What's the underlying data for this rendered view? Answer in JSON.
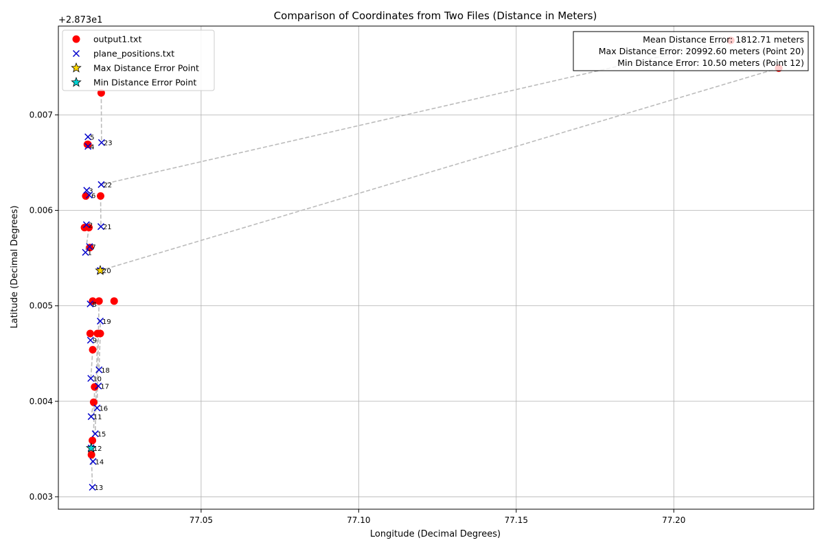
{
  "chart_data": {
    "type": "scatter",
    "title": "Comparison of Coordinates from Two Files (Distance in Meters)",
    "xlabel": "Longitude (Decimal Degrees)",
    "ylabel": "Latitude (Decimal Degrees)",
    "y_offset_label": "+2.873e1",
    "xlim": [
      77.0047,
      77.2444
    ],
    "ylim": [
      0.00287,
      0.00793
    ],
    "xticks": [
      77.05,
      77.1,
      77.15,
      77.2
    ],
    "xtick_labels": [
      "77.05",
      "77.10",
      "77.15",
      "77.20"
    ],
    "yticks": [
      0.003,
      0.004,
      0.005,
      0.006,
      0.007
    ],
    "ytick_labels": [
      "0.003",
      "0.004",
      "0.005",
      "0.006",
      "0.007"
    ],
    "grid": true,
    "legend_placement": "top-left",
    "colors": {
      "output1": "#ff0000",
      "plane": "#0000cc",
      "max_star": "#ffd700",
      "min_star": "#00d4d4",
      "lines": "#bbbbbb"
    },
    "series": [
      {
        "name": "output1.txt",
        "marker": "circle",
        "points": [
          [
            77.0224,
            0.00505
          ],
          [
            77.0134,
            0.00615
          ],
          [
            77.013,
            0.00582
          ],
          [
            77.0144,
            0.00582
          ],
          [
            77.0139,
            0.00669
          ],
          [
            77.0141,
            0.00669
          ],
          [
            77.0147,
            0.00561
          ],
          [
            77.0156,
            0.00505
          ],
          [
            77.0148,
            0.00471
          ],
          [
            77.0156,
            0.00454
          ],
          [
            77.0162,
            0.00415
          ],
          [
            77.0159,
            0.00399
          ],
          [
            77.0155,
            0.00359
          ],
          [
            77.0152,
            0.00344
          ],
          [
            77.0171,
            0.00471
          ],
          [
            77.018,
            0.00471
          ],
          [
            77.0181,
            0.00615
          ],
          [
            77.0183,
            0.00723
          ],
          [
            77.0176,
            0.00505
          ],
          [
            77.2181,
            0.00778
          ],
          [
            77.2333,
            0.00749
          ]
        ]
      },
      {
        "name": "plane_positions.txt",
        "marker": "x",
        "points": [
          {
            "label": "1",
            "x": 77.0133,
            "y": 0.00556
          },
          {
            "label": "2",
            "x": 77.0136,
            "y": 0.00585
          },
          {
            "label": "3",
            "x": 77.0137,
            "y": 0.00621
          },
          {
            "label": "4",
            "x": 77.0141,
            "y": 0.00667
          },
          {
            "label": "5",
            "x": 77.0141,
            "y": 0.00677
          },
          {
            "label": "6",
            "x": 77.0145,
            "y": 0.00616
          },
          {
            "label": "7",
            "x": 77.0146,
            "y": 0.00562
          },
          {
            "label": "8",
            "x": 77.0148,
            "y": 0.00502
          },
          {
            "label": "9",
            "x": 77.0149,
            "y": 0.00464
          },
          {
            "label": "10",
            "x": 77.015,
            "y": 0.00424
          },
          {
            "label": "11",
            "x": 77.0151,
            "y": 0.00384
          },
          {
            "label": "12",
            "x": 77.0151,
            "y": 0.00351
          },
          {
            "label": "13",
            "x": 77.0155,
            "y": 0.0031
          },
          {
            "label": "14",
            "x": 77.0157,
            "y": 0.00337
          },
          {
            "label": "15",
            "x": 77.0164,
            "y": 0.00366
          },
          {
            "label": "16",
            "x": 77.017,
            "y": 0.00393
          },
          {
            "label": "17",
            "x": 77.0174,
            "y": 0.00416
          },
          {
            "label": "18",
            "x": 77.0176,
            "y": 0.00433
          },
          {
            "label": "19",
            "x": 77.018,
            "y": 0.00484
          },
          {
            "label": "20",
            "x": 77.018,
            "y": 0.00537
          },
          {
            "label": "21",
            "x": 77.0182,
            "y": 0.00583
          },
          {
            "label": "22",
            "x": 77.0183,
            "y": 0.00627
          },
          {
            "label": "23",
            "x": 77.0184,
            "y": 0.00671
          }
        ]
      },
      {
        "name": "Max Distance Error Point",
        "marker": "star",
        "points": [
          [
            77.018,
            0.00537
          ]
        ]
      },
      {
        "name": "Min Distance Error Point",
        "marker": "star",
        "points": [
          [
            77.0151,
            0.00351
          ]
        ]
      }
    ],
    "connections": [
      [
        [
          77.0141,
          0.00669
        ],
        [
          77.0141,
          0.00677
        ]
      ],
      [
        [
          77.0141,
          0.00669
        ],
        [
          77.0141,
          0.00667
        ]
      ],
      [
        [
          77.0134,
          0.00615
        ],
        [
          77.0137,
          0.00621
        ]
      ],
      [
        [
          77.0134,
          0.00615
        ],
        [
          77.0145,
          0.00616
        ]
      ],
      [
        [
          77.013,
          0.00582
        ],
        [
          77.0136,
          0.00585
        ]
      ],
      [
        [
          77.0144,
          0.00582
        ],
        [
          77.0133,
          0.00556
        ]
      ],
      [
        [
          77.0147,
          0.00561
        ],
        [
          77.0146,
          0.00562
        ]
      ],
      [
        [
          77.0156,
          0.00505
        ],
        [
          77.0148,
          0.00502
        ]
      ],
      [
        [
          77.0148,
          0.00471
        ],
        [
          77.0149,
          0.00464
        ]
      ],
      [
        [
          77.0156,
          0.00454
        ],
        [
          77.015,
          0.00424
        ]
      ],
      [
        [
          77.0159,
          0.00399
        ],
        [
          77.0151,
          0.00384
        ]
      ],
      [
        [
          77.0155,
          0.00359
        ],
        [
          77.0151,
          0.00351
        ]
      ],
      [
        [
          77.0152,
          0.00344
        ],
        [
          77.0155,
          0.0031
        ]
      ],
      [
        [
          77.0162,
          0.00415
        ],
        [
          77.0157,
          0.00337
        ]
      ],
      [
        [
          77.0162,
          0.00415
        ],
        [
          77.0174,
          0.00416
        ]
      ],
      [
        [
          77.0171,
          0.00471
        ],
        [
          77.0164,
          0.00366
        ]
      ],
      [
        [
          77.0176,
          0.00505
        ],
        [
          77.017,
          0.00393
        ]
      ],
      [
        [
          77.018,
          0.00471
        ],
        [
          77.0176,
          0.00433
        ]
      ],
      [
        [
          77.018,
          0.00471
        ],
        [
          77.018,
          0.00484
        ]
      ],
      [
        [
          77.0181,
          0.00615
        ],
        [
          77.0182,
          0.00583
        ]
      ],
      [
        [
          77.0183,
          0.00723
        ],
        [
          77.0184,
          0.00671
        ]
      ],
      [
        [
          77.2333,
          0.00749
        ],
        [
          77.018,
          0.00537
        ]
      ],
      [
        [
          77.2181,
          0.00778
        ],
        [
          77.0183,
          0.00627
        ]
      ]
    ],
    "annotation": {
      "lines": [
        "Mean Distance Error: 1812.71 meters",
        "Max Distance Error: 20992.60 meters (Point 20)",
        "Min Distance Error: 10.50 meters (Point 12)"
      ],
      "placement": "top-right"
    }
  }
}
